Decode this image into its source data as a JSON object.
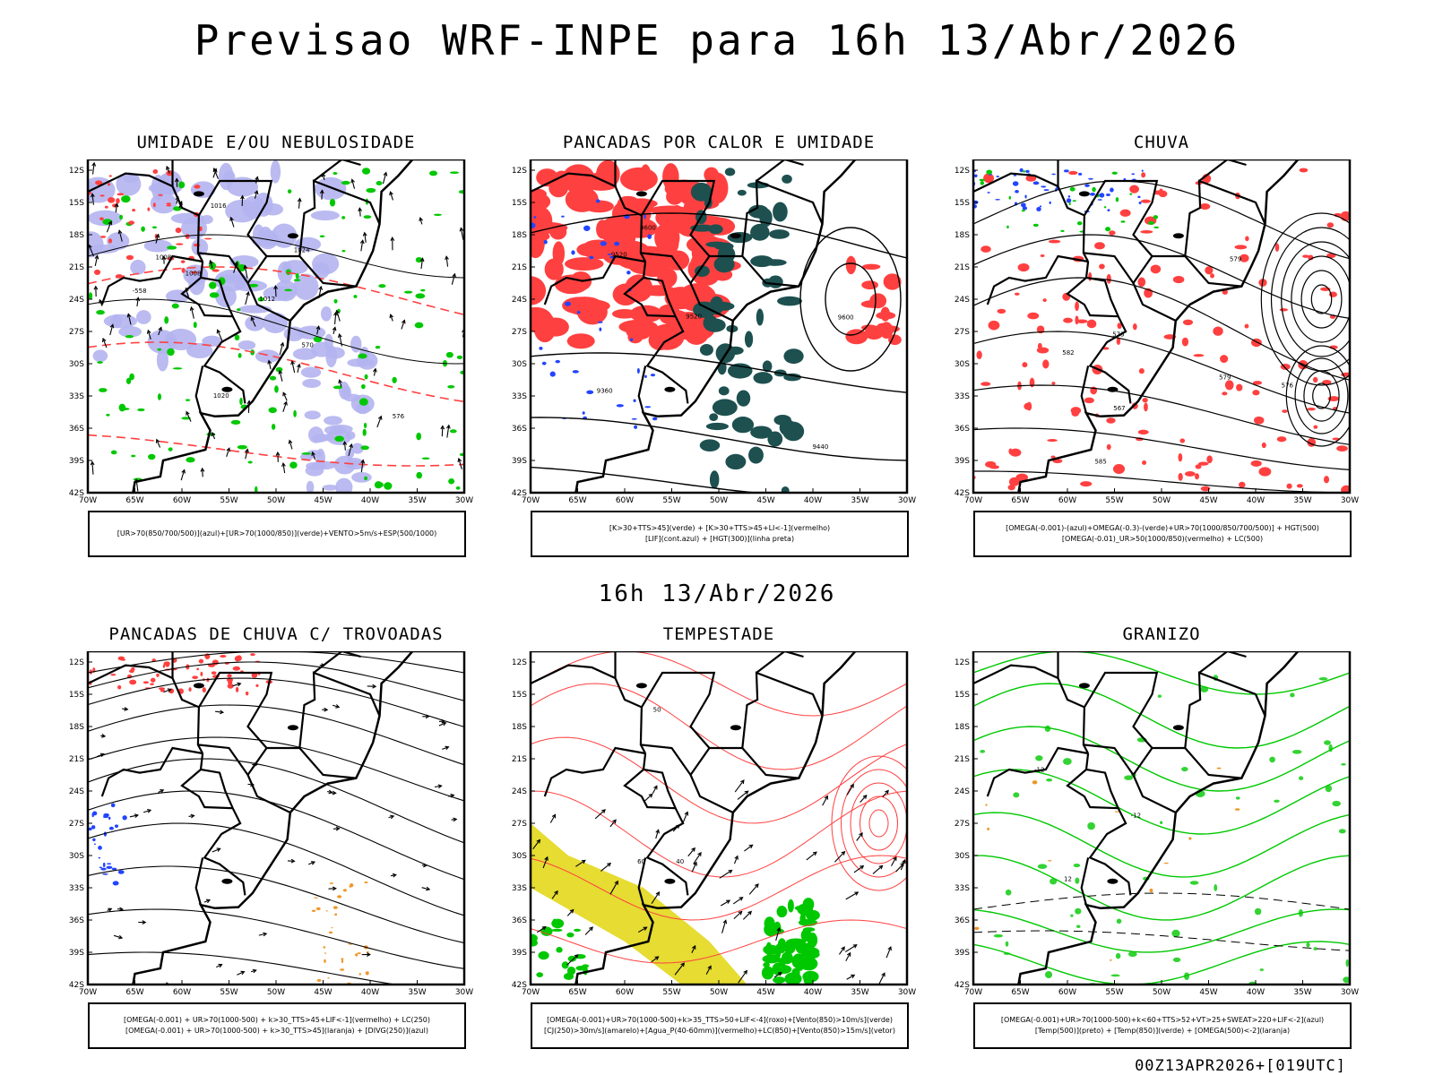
{
  "header": {
    "title": "Previsao WRF-INPE  para 16h 13/Abr/2026"
  },
  "subtitle": "16h 13/Abr/2026",
  "footer": "00Z13APR2026+[019UTC]",
  "axes": {
    "lat_labels": [
      "12S",
      "15S",
      "18S",
      "21S",
      "24S",
      "27S",
      "30S",
      "33S",
      "36S",
      "39S",
      "42S"
    ],
    "lon_labels": [
      "70W",
      "65W",
      "60W",
      "55W",
      "50W",
      "45W",
      "40W",
      "35W",
      "30W"
    ]
  },
  "colors": {
    "red": "#ff4040",
    "green": "#00c800",
    "blue": "#2244ff",
    "lavender": "#b4b4f0",
    "darkteal": "#1e5050",
    "yellow": "#e6dc32",
    "orange": "#f09628",
    "dashred": "#ff4040"
  },
  "panels": [
    {
      "title": "UMIDADE E/OU NEBULOSIDADE",
      "legend": [
        "[UR>70(850/700/500)](azul)+[UR>70(1000/850)](verde)+VENTO>5m/s+ESP(500/1000)"
      ],
      "contour_labels": [
        "1008",
        "1008",
        "1012",
        "1016",
        "1020",
        "1024",
        "-558",
        "570",
        "576"
      ]
    },
    {
      "title": "PANCADAS POR CALOR E UMIDADE",
      "legend": [
        "[K>30+TTS>45](verde) + [K>30+TTS>45+LI<-1](vermelho)",
        "[LIF](cont.azul) + [HGT(300)](linha preta)"
      ],
      "contour_labels": [
        "9600",
        "9600",
        "9520",
        "9440",
        "9360",
        "9520"
      ]
    },
    {
      "title": "CHUVA",
      "legend": [
        "[OMEGA(-0.001)-(azul)+OMEGA(-0.3)-(verde)+UR>70(1000/850/700/500)] + HGT(500)",
        "[OMEGA(-0.01)_UR>50(1000/850)(vermelho) + LC(500)"
      ],
      "contour_labels": [
        "585",
        "579",
        "573",
        "567",
        "576",
        "579",
        "582"
      ]
    },
    {
      "title": "PANCADAS DE CHUVA C/ TROVOADAS",
      "legend": [
        "[OMEGA(-0.001) + UR>70(1000-500) + k>30_TTS>45+LIF<-1](vermelho) + LC(250)",
        "[OMEGA(-0.001) + UR>70(1000-500) + k>30_TTS>45](laranja) + [DIVG(250)](azul)"
      ],
      "contour_labels": []
    },
    {
      "title": "TEMPESTADE",
      "legend": [
        "[OMEGA(-0.001)+UR>70(1000-500)+k>35_TTS>50+LIF<-4](roxo)+[Vento(850)>10m/s](verde)",
        "[CJ(250)>30m/s](amarelo)+[Agua_P(40-60mm)](vermelho)+LC(850)+[Vento(850)>15m/s](vetor)"
      ],
      "contour_labels": [
        "40",
        "50",
        "60"
      ]
    },
    {
      "title": "GRANIZO",
      "legend": [
        "[OMEGA(-0.001)+UR>70(1000-500)+k<60+TTS>52+VT>25+SWEAT>220+LIF<-2](azul)",
        "[Temp(500)](preto) + [Temp(850)](verde) + [OMEGA(500)<-2](laranja)"
      ],
      "contour_labels": [
        "-12",
        "-12",
        "12"
      ]
    }
  ]
}
